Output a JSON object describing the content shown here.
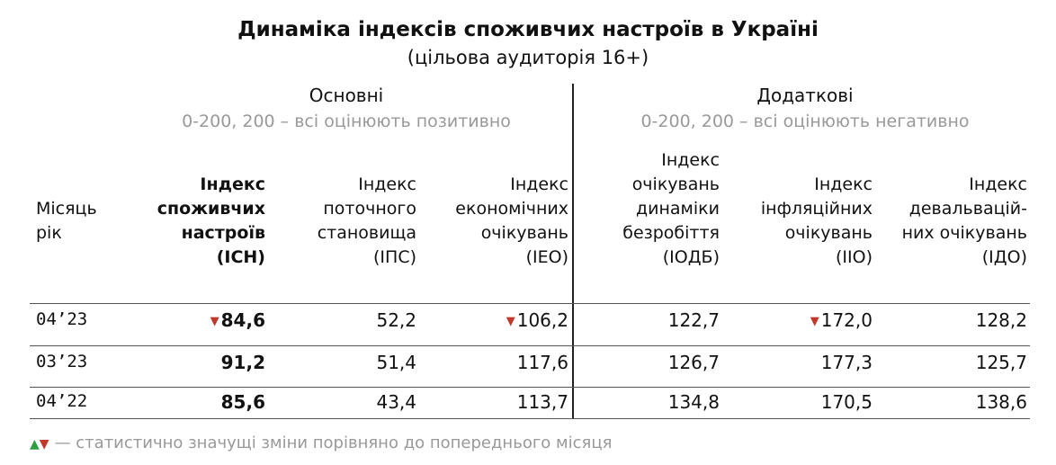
{
  "title": "Динаміка індексів споживчих настроїв в Україні",
  "subtitle": "(цільова аудиторія 16+)",
  "groups": [
    {
      "label": "Основні",
      "note": "0-200, 200 – всі оцінюють позитивно"
    },
    {
      "label": "Додаткові",
      "note": "0-200, 200 – всі оцінюють негативно"
    }
  ],
  "columns": [
    [
      "Місяць",
      "рік"
    ],
    [
      "Індекс",
      "споживчих",
      "настроїв",
      "(ІСН)"
    ],
    [
      "Індекс",
      "поточного",
      "становища",
      "(ІПС)"
    ],
    [
      "Індекс",
      "економічних",
      "очікувань",
      "(ІЕО)"
    ],
    [
      "Індекс",
      "очікувань",
      "динаміки",
      "безробіття",
      "(ІОДБ)"
    ],
    [
      "Індекс",
      "інфляційних",
      "очікувань",
      "(ІІО)"
    ],
    [
      "Індекс",
      "девальвацій-",
      "них очікувань",
      "(ІДО)"
    ]
  ],
  "rows": [
    {
      "month": "04’23",
      "values": [
        "84,6",
        "52,2",
        "106,2",
        "122,7",
        "172,0",
        "128,2"
      ],
      "down": [
        0,
        2,
        4
      ]
    },
    {
      "month": "03’23",
      "values": [
        "91,2",
        "51,4",
        "117,6",
        "126,7",
        "177,3",
        "125,7"
      ],
      "down": []
    },
    {
      "month": "04’22",
      "values": [
        "85,6",
        "43,4",
        "113,7",
        "134,8",
        "170,5",
        "138,6"
      ],
      "down": []
    }
  ],
  "legend": "— статистично значущі зміни порівняно до попереднього місяця"
}
